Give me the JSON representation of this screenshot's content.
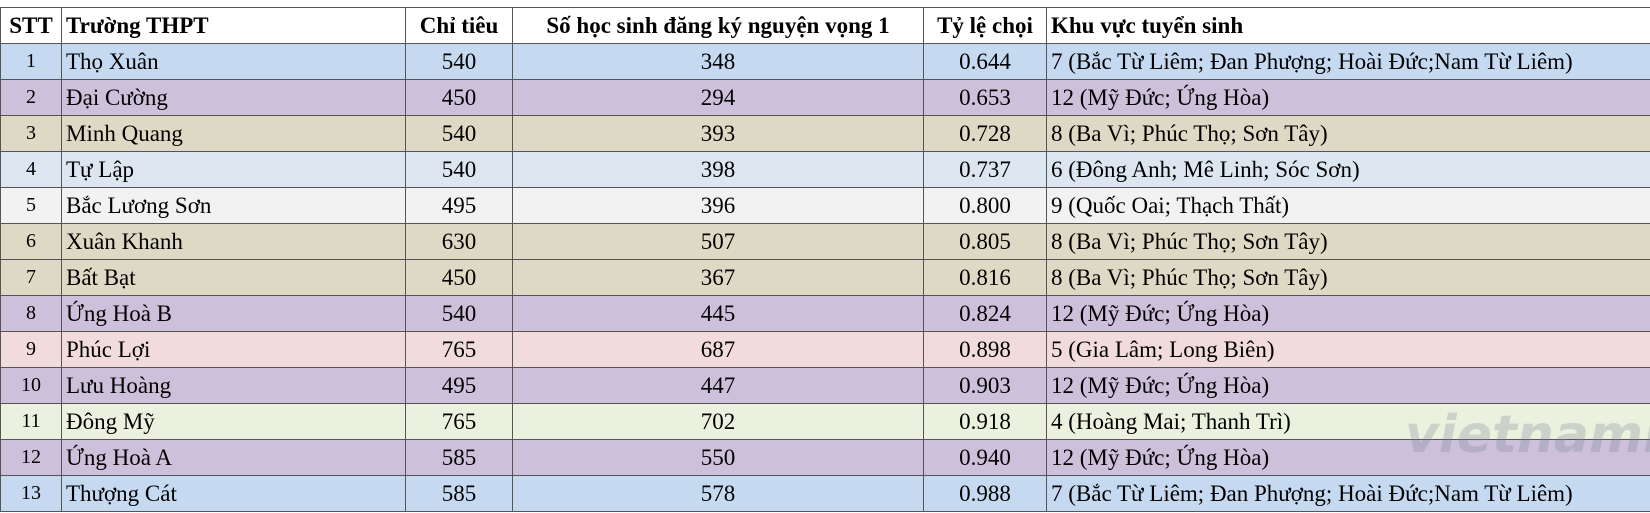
{
  "table": {
    "header": [
      "STT",
      "Trường THPT",
      "Chỉ tiêu",
      "Số học sinh đăng ký nguyện vọng 1",
      "Tỷ lệ chọi",
      "Khu vực tuyển sinh"
    ],
    "rows": [
      [
        "1",
        "Thọ Xuân",
        "540",
        "348",
        "0.644",
        "7 (Bắc Từ Liêm; Đan Phượng; Hoài Đức;Nam Từ Liêm)"
      ],
      [
        "2",
        "Đại Cường",
        "450",
        "294",
        "0.653",
        "12 (Mỹ Đức; Ứng Hòa)"
      ],
      [
        "3",
        "Minh Quang",
        "540",
        "393",
        "0.728",
        "8 (Ba Vì; Phúc Thọ; Sơn Tây)"
      ],
      [
        "4",
        "Tự Lập",
        "540",
        "398",
        "0.737",
        "6 (Đông Anh; Mê Linh; Sóc Sơn)"
      ],
      [
        "5",
        "Bắc Lương Sơn",
        "495",
        "396",
        "0.800",
        "9 (Quốc Oai; Thạch Thất)"
      ],
      [
        "6",
        "Xuân Khanh",
        "630",
        "507",
        "0.805",
        "8 (Ba Vì; Phúc Thọ; Sơn Tây)"
      ],
      [
        "7",
        "Bất Bạt",
        "450",
        "367",
        "0.816",
        "8 (Ba Vì; Phúc Thọ; Sơn Tây)"
      ],
      [
        "8",
        "Ứng Hoà B",
        "540",
        "445",
        "0.824",
        "12 (Mỹ Đức; Ứng Hòa)"
      ],
      [
        "9",
        "Phúc Lợi",
        "765",
        "687",
        "0.898",
        "5 (Gia Lâm; Long Biên)"
      ],
      [
        "10",
        "Lưu Hoàng",
        "495",
        "447",
        "0.903",
        "12 (Mỹ Đức; Ứng Hòa)"
      ],
      [
        "11",
        "Đông Mỹ",
        "765",
        "702",
        "0.918",
        "4 (Hoàng Mai; Thanh Trì)"
      ],
      [
        "12",
        "Ứng Hoà A",
        "585",
        "550",
        "0.940",
        "12 (Mỹ Đức; Ứng Hòa)"
      ],
      [
        "13",
        "Thượng Cát",
        "585",
        "578",
        "0.988",
        "7 (Bắc Từ Liêm; Đan Phượng; Hoài Đức;Nam Từ Liêm)"
      ]
    ]
  },
  "watermark": "vietnamnet"
}
